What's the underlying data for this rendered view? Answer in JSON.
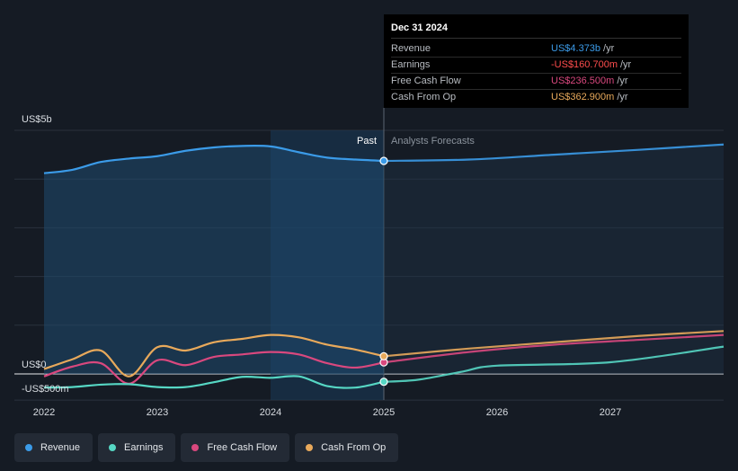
{
  "tooltip": {
    "date": "Dec 31 2024",
    "rows": [
      {
        "label": "Revenue",
        "value": "US$4.373b",
        "unit": "/yr",
        "color": "#3b9be8"
      },
      {
        "label": "Earnings",
        "value": "-US$160.700m",
        "unit": "/yr",
        "color": "#ff4d4d"
      },
      {
        "label": "Free Cash Flow",
        "value": "US$236.500m",
        "unit": "/yr",
        "color": "#d9487e"
      },
      {
        "label": "Cash From Op",
        "value": "US$362.900m",
        "unit": "/yr",
        "color": "#e8a95b"
      }
    ]
  },
  "legend": [
    {
      "label": "Revenue",
      "color": "#3b9be8"
    },
    {
      "label": "Earnings",
      "color": "#56d7c4"
    },
    {
      "label": "Free Cash Flow",
      "color": "#d9487e"
    },
    {
      "label": "Cash From Op",
      "color": "#e8a95b"
    }
  ],
  "chart_data": {
    "type": "line",
    "x_unit": "year",
    "y_unit": "US$ billions",
    "ylim": [
      -0.5,
      5
    ],
    "xlim": [
      2021.8,
      2028.0
    ],
    "x_ticks": [
      2022,
      2023,
      2024,
      2025,
      2026,
      2027
    ],
    "x_tick_labels": [
      "2022",
      "2023",
      "2024",
      "2025",
      "2026",
      "2027"
    ],
    "y_tick_labels": [
      {
        "value": 5,
        "label": "US$5b"
      },
      {
        "value": 0,
        "label": "US$0"
      },
      {
        "value": -0.5,
        "label": "-US$500m"
      }
    ],
    "past_label": "Past",
    "forecast_label": "Analysts Forecasts",
    "past_region_start": 2024.0,
    "divider_x": 2025.0,
    "series": [
      {
        "name": "Revenue",
        "color": "#3b9be8",
        "past": [
          [
            2022.0,
            4.12
          ],
          [
            2022.25,
            4.19
          ],
          [
            2022.5,
            4.35
          ],
          [
            2022.75,
            4.42
          ],
          [
            2023.0,
            4.47
          ],
          [
            2023.25,
            4.58
          ],
          [
            2023.5,
            4.65
          ],
          [
            2023.75,
            4.68
          ],
          [
            2024.0,
            4.67
          ],
          [
            2024.25,
            4.55
          ],
          [
            2024.5,
            4.44
          ],
          [
            2024.75,
            4.4
          ],
          [
            2025.0,
            4.373
          ]
        ],
        "forecast": [
          [
            2025.0,
            4.373
          ],
          [
            2025.75,
            4.4
          ],
          [
            2026.5,
            4.5
          ],
          [
            2027.25,
            4.6
          ],
          [
            2028.0,
            4.71
          ]
        ]
      },
      {
        "name": "Earnings",
        "color": "#56d7c4",
        "past": [
          [
            2022.0,
            -0.28
          ],
          [
            2022.25,
            -0.27
          ],
          [
            2022.5,
            -0.22
          ],
          [
            2022.75,
            -0.21
          ],
          [
            2023.0,
            -0.27
          ],
          [
            2023.25,
            -0.27
          ],
          [
            2023.5,
            -0.17
          ],
          [
            2023.75,
            -0.06
          ],
          [
            2024.0,
            -0.08
          ],
          [
            2024.25,
            -0.05
          ],
          [
            2024.5,
            -0.25
          ],
          [
            2024.75,
            -0.28
          ],
          [
            2025.0,
            -0.1607
          ]
        ],
        "forecast": [
          [
            2025.0,
            -0.1607
          ],
          [
            2025.3,
            -0.12
          ],
          [
            2025.7,
            0.05
          ],
          [
            2026.0,
            0.17
          ],
          [
            2027.0,
            0.24
          ],
          [
            2028.0,
            0.56
          ]
        ]
      },
      {
        "name": "Free Cash Flow",
        "color": "#d9487e",
        "past": [
          [
            2022.0,
            -0.05
          ],
          [
            2022.25,
            0.15
          ],
          [
            2022.5,
            0.22
          ],
          [
            2022.75,
            -0.2
          ],
          [
            2023.0,
            0.28
          ],
          [
            2023.25,
            0.18
          ],
          [
            2023.5,
            0.35
          ],
          [
            2023.75,
            0.4
          ],
          [
            2024.0,
            0.45
          ],
          [
            2024.25,
            0.4
          ],
          [
            2024.5,
            0.22
          ],
          [
            2024.75,
            0.13
          ],
          [
            2025.0,
            0.2365
          ]
        ],
        "forecast": [
          [
            2025.0,
            0.2365
          ],
          [
            2025.75,
            0.45
          ],
          [
            2026.5,
            0.6
          ],
          [
            2027.25,
            0.7
          ],
          [
            2028.0,
            0.8
          ]
        ]
      },
      {
        "name": "Cash From Op",
        "color": "#e8a95b",
        "past": [
          [
            2022.0,
            0.1
          ],
          [
            2022.25,
            0.3
          ],
          [
            2022.5,
            0.48
          ],
          [
            2022.75,
            -0.05
          ],
          [
            2023.0,
            0.55
          ],
          [
            2023.25,
            0.48
          ],
          [
            2023.5,
            0.65
          ],
          [
            2023.75,
            0.72
          ],
          [
            2024.0,
            0.8
          ],
          [
            2024.25,
            0.75
          ],
          [
            2024.5,
            0.6
          ],
          [
            2024.75,
            0.5
          ],
          [
            2025.0,
            0.3629
          ]
        ],
        "forecast": [
          [
            2025.0,
            0.3629
          ],
          [
            2025.75,
            0.52
          ],
          [
            2026.5,
            0.65
          ],
          [
            2027.25,
            0.78
          ],
          [
            2028.0,
            0.88
          ]
        ]
      }
    ]
  }
}
